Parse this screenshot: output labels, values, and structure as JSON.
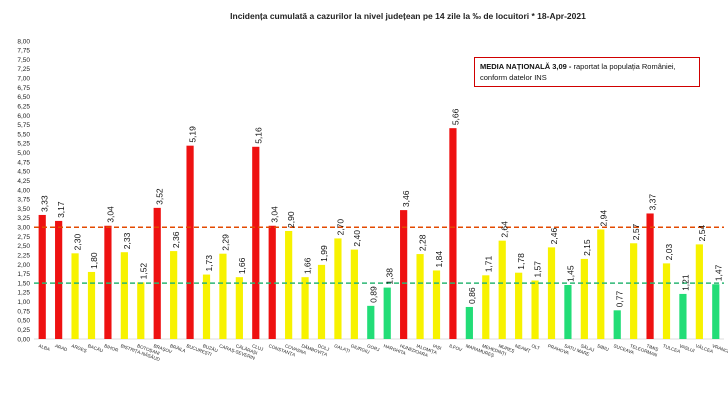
{
  "chart_data": {
    "type": "bar",
    "title": "Incidența cumulată a cazurilor la nivel județean pe 14 zile   la ‰ de locuitori  *   18-Apr-2021",
    "xlabel": "",
    "ylabel": "",
    "ylim": [
      0,
      8
    ],
    "yticks": [
      "0,00",
      "0,25",
      "0,50",
      "0,75",
      "1,00",
      "1,25",
      "1,50",
      "1,75",
      "2,00",
      "2,25",
      "2,50",
      "2,75",
      "3,00",
      "3,25",
      "3,50",
      "3,75",
      "4,00",
      "4,25",
      "4,50",
      "4,75",
      "5,00",
      "5,25",
      "5,50",
      "5,75",
      "6,00",
      "6,25",
      "6,50",
      "6,75",
      "7,00",
      "7,25",
      "7,50",
      "7,75",
      "8,00"
    ],
    "grid": false,
    "categories": [
      "ALBA",
      "ARAD",
      "ARGEȘ",
      "BACĂU",
      "BIHOR",
      "BISTRIȚA-NĂSĂUD",
      "BOTOȘANI",
      "BRAȘOV",
      "BRĂILA",
      "BUCUREȘTI",
      "BUZĂU",
      "CARAȘ-SEVERIN",
      "CĂLĂRAȘI",
      "CLUJ",
      "CONSTANȚA",
      "COVASNA",
      "DÂMBOVIȚA",
      "DOLJ",
      "GALAȚI",
      "GIURGIU",
      "GORJ",
      "HARGHITA",
      "HUNEDOARA",
      "IALOMIȚA",
      "IAȘI",
      "ILFOV",
      "MARAMUREȘ",
      "MEHEDINȚI",
      "MUREȘ",
      "NEAMȚ",
      "OLT",
      "PRAHOVA",
      "SATU MARE",
      "SĂLAJ",
      "SIBIU",
      "SUCEAVA",
      "TELEORMAN",
      "TIMIȘ",
      "TULCEA",
      "VASLUI",
      "VÂLCEA",
      "VRANCEA"
    ],
    "values": [
      3.33,
      3.17,
      2.3,
      1.8,
      3.04,
      2.33,
      1.52,
      3.52,
      2.36,
      5.19,
      1.73,
      2.29,
      1.66,
      5.16,
      3.04,
      2.9,
      1.66,
      1.99,
      2.7,
      2.4,
      0.89,
      1.38,
      3.46,
      2.28,
      1.84,
      5.66,
      0.86,
      1.71,
      2.64,
      1.78,
      1.57,
      2.46,
      1.45,
      2.15,
      2.94,
      0.77,
      2.57,
      3.37,
      2.03,
      1.21,
      2.54,
      1.47
    ],
    "value_labels": [
      "3,33",
      "3,17",
      "2,30",
      "1,80",
      "3,04",
      "2,33",
      "1,52",
      "3,52",
      "2,36",
      "5,19",
      "1,73",
      "2,29",
      "1,66",
      "5,16",
      "3,04",
      "2,90",
      "1,66",
      "1,99",
      "2,70",
      "2,40",
      "0,89",
      "1,38",
      "3,46",
      "2,28",
      "1,84",
      "5,66",
      "0,86",
      "1,71",
      "2,64",
      "1,78",
      "1,57",
      "2,46",
      "1,45",
      "2,15",
      "2,94",
      "0,77",
      "2,57",
      "3,37",
      "2,03",
      "1,21",
      "2,54",
      "1,47"
    ],
    "reference_lines": [
      {
        "value": 3.0,
        "color": "#e34a00",
        "style": "dashed"
      },
      {
        "value": 1.5,
        "color": "#2bb673",
        "style": "dashed"
      }
    ],
    "colors": {
      "high": "#ee1111",
      "medium": "#f7f200",
      "low": "#22dd77"
    },
    "annotation": {
      "bold": "MEDIA NAȚIONALĂ 3,09 -",
      "text_line1": " raportat la populația României,",
      "text_line2": "conform datelor INS"
    }
  }
}
